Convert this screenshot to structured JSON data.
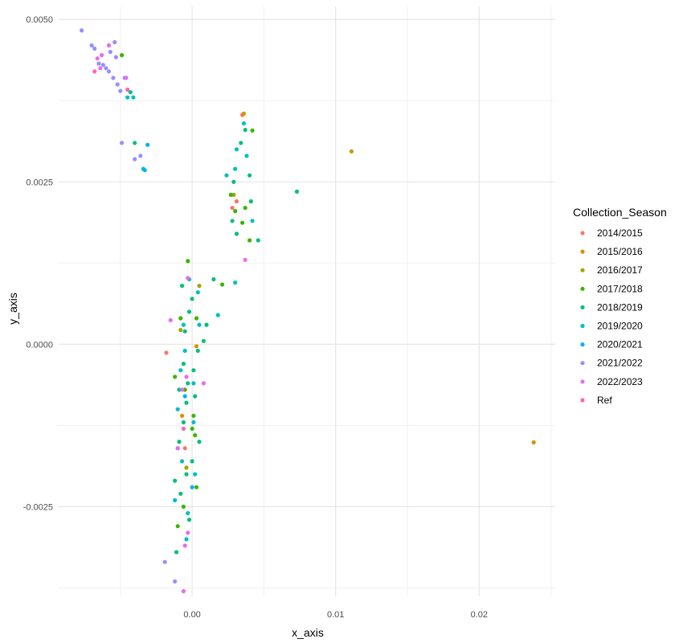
{
  "chart_data": {
    "type": "scatter",
    "xlabel": "x_axis",
    "ylabel": "y_axis",
    "xlim": [
      -0.0093,
      0.0253
    ],
    "ylim": [
      -0.00388,
      0.0052
    ],
    "x_ticks": [
      0.0,
      0.01,
      0.02
    ],
    "x_tick_labels": [
      "0.00",
      "0.01",
      "0.02"
    ],
    "y_ticks": [
      -0.0025,
      0.0,
      0.0025,
      0.005
    ],
    "y_tick_labels": [
      "-0.0025",
      "0.0000",
      "0.0025",
      "0.0050"
    ],
    "grid": true,
    "legend": {
      "title": "Collection_Season",
      "position": "right",
      "entries": [
        "2014/2015",
        "2015/2016",
        "2016/2017",
        "2017/2018",
        "2018/2019",
        "2019/2020",
        "2020/2021",
        "2021/2022",
        "2022/2023",
        "Ref"
      ]
    },
    "colors": [
      "#F8766D",
      "#D89000",
      "#A3A500",
      "#39B600",
      "#00BF7D",
      "#00BFC4",
      "#00B0F6",
      "#9590FF",
      "#E76BF3",
      "#FF62BC"
    ],
    "series": [
      {
        "name": "2014/2015",
        "points": [
          [
            -0.0018,
            -0.00013
          ],
          [
            0.0028,
            0.0021
          ],
          [
            0.0031,
            0.0022
          ],
          [
            -0.0005,
            -0.0016
          ],
          [
            0.0035,
            0.00353
          ]
        ]
      },
      {
        "name": "2015/2016",
        "points": [
          [
            0.0111,
            0.00297
          ],
          [
            0.0238,
            -0.00151
          ],
          [
            0.0003,
            -3e-05
          ],
          [
            -0.0007,
            -0.0011
          ],
          [
            0.0036,
            0.00355
          ]
        ]
      },
      {
        "name": "2016/2017",
        "points": [
          [
            -0.0008,
            0.00022
          ],
          [
            0.0005,
            0.0009
          ],
          [
            0.0029,
            0.0023
          ],
          [
            -0.0004,
            -0.0019
          ]
        ]
      },
      {
        "name": "2017/2018",
        "points": [
          [
            -0.0003,
            0.00128
          ],
          [
            0.0021,
            0.00092
          ],
          [
            0.0042,
            0.00329
          ],
          [
            0.0035,
            0.00187
          ],
          [
            -0.001,
            -0.0016
          ],
          [
            -0.0006,
            -0.0025
          ],
          [
            0.0001,
            -0.0011
          ],
          [
            -0.0012,
            -0.0005
          ],
          [
            0.0003,
            -0.0022
          ],
          [
            0.0037,
            0.0021
          ],
          [
            -0.0008,
            0.0004
          ],
          [
            0.0002,
            -0.0014
          ],
          [
            -0.001,
            -0.0028
          ],
          [
            0.004,
            0.0016
          ],
          [
            0.0027,
            0.0023
          ],
          [
            -0.0005,
            -0.0007
          ],
          [
            0.0003,
            0.0004
          ],
          [
            -0.0049,
            0.00445
          ],
          [
            0.003,
            0.00205
          ],
          [
            0.0,
            -0.0013
          ]
        ]
      },
      {
        "name": "2018/2019",
        "points": [
          [
            0.0073,
            0.00235
          ],
          [
            0.0046,
            0.0016
          ],
          [
            0.0015,
            0.001
          ],
          [
            0.004,
            0.0026
          ],
          [
            -0.0002,
            0.0005
          ],
          [
            0.001,
            0.0003
          ],
          [
            -0.0006,
            -0.0003
          ],
          [
            0.0002,
            -0.0008
          ],
          [
            -0.0009,
            -0.0015
          ],
          [
            -0.0004,
            -0.002
          ],
          [
            -0.0008,
            -0.0023
          ],
          [
            0.0001,
            -0.0004
          ],
          [
            -0.0005,
            0.0002
          ],
          [
            0.0029,
            0.0025
          ],
          [
            0.0037,
            0.0033
          ],
          [
            -0.0011,
            -0.0032
          ],
          [
            -0.0006,
            -0.0012
          ],
          [
            0.0,
            -0.0018
          ],
          [
            0.0028,
            0.0019
          ],
          [
            0.0034,
            0.0031
          ],
          [
            -0.0003,
            -0.0006
          ],
          [
            0.0004,
            -0.0001
          ],
          [
            -0.0009,
            -0.0007
          ],
          [
            0.0,
            0.0007
          ],
          [
            -0.0007,
            0.0009
          ],
          [
            0.0031,
            0.0017
          ],
          [
            0.0041,
            0.0022
          ],
          [
            -0.0002,
            -0.0027
          ],
          [
            -0.0012,
            -0.0021
          ],
          [
            0.0005,
            -0.0015
          ],
          [
            -0.0004,
            -0.0009
          ],
          [
            0.0008,
            5e-05
          ],
          [
            -0.004,
            0.0031
          ],
          [
            -0.0043,
            0.00388
          ]
        ]
      },
      {
        "name": "2019/2020",
        "points": [
          [
            0.0031,
            0.003
          ],
          [
            0.0036,
            0.0034
          ],
          [
            0.0042,
            0.0019
          ],
          [
            -0.0034,
            0.0027
          ],
          [
            -0.0002,
            0.001
          ],
          [
            0.0018,
            0.00045
          ],
          [
            -0.0005,
            -0.0001
          ],
          [
            0.0001,
            -0.0012
          ],
          [
            -0.0007,
            -0.0018
          ],
          [
            -0.0003,
            -0.0026
          ],
          [
            0.003,
            0.0027
          ],
          [
            -0.0008,
            -0.0004
          ],
          [
            0.0004,
            0.0008
          ],
          [
            0.003,
            0.00095
          ],
          [
            0.0038,
            0.0029
          ],
          [
            -0.001,
            -0.001
          ],
          [
            -0.0004,
            -0.003
          ],
          [
            0.0001,
            -0.0006
          ],
          [
            0.0024,
            0.0026
          ],
          [
            -0.0006,
            0.0003
          ],
          [
            0.0002,
            -0.002
          ],
          [
            -0.0012,
            -0.0024
          ],
          [
            0.0005,
            0.0003
          ],
          [
            -0.0045,
            0.0038
          ],
          [
            -0.0041,
            0.0038
          ]
        ]
      },
      {
        "name": "2020/2021",
        "points": [
          [
            -0.0033,
            0.00268
          ],
          [
            -0.0031,
            0.00307
          ],
          [
            -0.0005,
            -0.0008
          ],
          [
            0.0,
            -0.0022
          ]
        ]
      },
      {
        "name": "2021/2022",
        "points": [
          [
            -0.0077,
            0.00483
          ],
          [
            -0.007,
            0.0046
          ],
          [
            -0.0068,
            0.00455
          ],
          [
            -0.0062,
            0.0043
          ],
          [
            -0.0058,
            0.0042
          ],
          [
            -0.0055,
            0.0041
          ],
          [
            -0.0052,
            0.004
          ],
          [
            -0.006,
            0.00425
          ],
          [
            -0.005,
            0.0039
          ],
          [
            -0.0047,
            0.0041
          ],
          [
            -0.0057,
            0.0045
          ],
          [
            -0.0054,
            0.00465
          ],
          [
            -0.0049,
            0.0031
          ],
          [
            -0.0036,
            0.0029
          ],
          [
            -0.004,
            0.00285
          ],
          [
            -0.0019,
            -0.00335
          ],
          [
            -0.0012,
            -0.00365
          ],
          [
            -0.0053,
            0.00442
          ],
          [
            -0.0065,
            0.00432
          ]
        ]
      },
      {
        "name": "2022/2023",
        "points": [
          [
            -0.0066,
            0.0044
          ],
          [
            -0.0064,
            0.00425
          ],
          [
            -0.0063,
            0.00445
          ],
          [
            -0.0046,
            0.0041
          ],
          [
            0.0037,
            0.0013
          ],
          [
            -0.0015,
            0.00037
          ],
          [
            -0.0003,
            -0.0029
          ],
          [
            -0.0006,
            -0.0038
          ],
          [
            -0.0003,
            0.00102
          ],
          [
            0.0008,
            -0.0006
          ],
          [
            -0.0004,
            -0.0005
          ],
          [
            -0.001,
            -0.0016
          ],
          [
            -0.0058,
            0.0046
          ],
          [
            -0.0007,
            -0.0007
          ],
          [
            -0.0005,
            -0.0031
          ]
        ]
      },
      {
        "name": "Ref",
        "points": [
          [
            -0.0068,
            0.0042
          ],
          [
            -0.0045,
            0.00392
          ],
          [
            -0.0006,
            -0.0013
          ]
        ]
      }
    ]
  }
}
